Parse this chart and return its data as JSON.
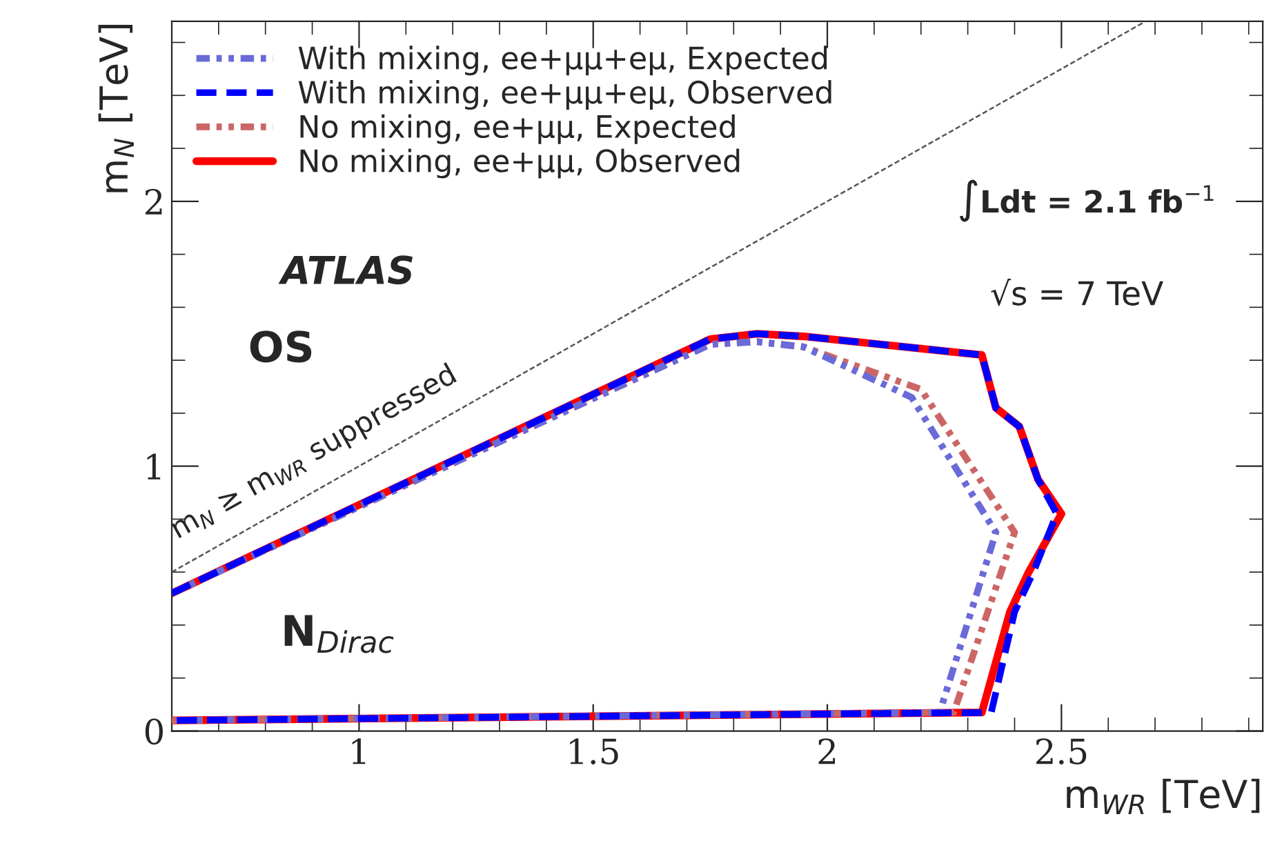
{
  "chart_data": {
    "type": "line",
    "xlabel": "m$_{WR}$ [TeV]",
    "ylabel": "m$_{N}$ [TeV]",
    "xlim": [
      0.6,
      2.93
    ],
    "ylim": [
      0,
      2.68
    ],
    "xticks": [
      1,
      1.5,
      2,
      2.5
    ],
    "yticks": [
      0,
      1,
      2
    ],
    "grid": false,
    "legend": "top left",
    "series": [
      {
        "name": "With mixing, ee+μμ+eμ, Expected",
        "color": "#6a6ad8",
        "line_style": "dotted",
        "x": [
          0.6,
          1.75,
          1.85,
          1.95,
          2.18,
          2.36,
          2.24,
          0.6
        ],
        "values": [
          0.52,
          1.46,
          1.47,
          1.45,
          1.26,
          0.75,
          0.07,
          0.04
        ]
      },
      {
        "name": "With mixing, ee+μμ+eμ, Observed",
        "color": "#0000ff",
        "line_style": "dashed",
        "x": [
          0.6,
          1.75,
          1.85,
          1.95,
          2.33,
          2.36,
          2.41,
          2.45,
          2.49,
          2.44,
          2.4,
          2.35,
          0.6
        ],
        "values": [
          0.52,
          1.48,
          1.5,
          1.49,
          1.42,
          1.22,
          1.15,
          0.95,
          0.82,
          0.6,
          0.45,
          0.07,
          0.04
        ]
      },
      {
        "name": "No mixing, ee+μμ, Expected",
        "color": "#cc6666",
        "line_style": "dotted",
        "x": [
          0.6,
          1.75,
          1.85,
          1.95,
          2.2,
          2.4,
          2.27,
          0.6
        ],
        "values": [
          0.52,
          1.46,
          1.47,
          1.45,
          1.29,
          0.75,
          0.07,
          0.04
        ]
      },
      {
        "name": "No mixing, ee+μμ, Observed",
        "color": "#ff0000",
        "line_style": "solid",
        "x": [
          0.6,
          1.75,
          1.85,
          1.95,
          2.33,
          2.36,
          2.41,
          2.45,
          2.5,
          2.43,
          2.39,
          2.33,
          0.6
        ],
        "values": [
          0.52,
          1.48,
          1.5,
          1.49,
          1.42,
          1.22,
          1.15,
          0.95,
          0.82,
          0.6,
          0.45,
          0.07,
          0.04
        ]
      },
      {
        "color": "#555555",
        "line_style": "dashed",
        "x": [
          0.6,
          2.68
        ],
        "values": [
          0.6,
          2.68
        ]
      }
    ],
    "annotations": [
      "m$_{N}$ ≥ m$_{WR}$ suppressed",
      "ATLAS",
      "OS",
      "N$_{Dirac}$",
      "∫Ldt = 2.1 fb$^{−1}$",
      "√s = 7 TeV"
    ]
  }
}
